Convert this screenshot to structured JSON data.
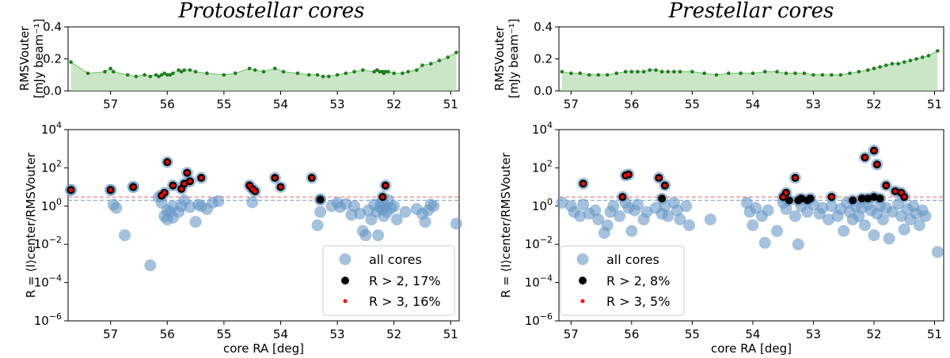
{
  "chart_data": [
    {
      "id": "proto",
      "type": "scatter",
      "title": "Protostellar cores",
      "x_ticks": [
        "57",
        "56",
        "55",
        "54",
        "53",
        "52",
        "51"
      ],
      "xlabel": "core RA [deg]",
      "top": {
        "type": "area",
        "ylabel_line1": "RMSVouter",
        "ylabel_line2": "[mJy beam⁻¹]",
        "y_ticks": [
          "0.0",
          "0.2",
          "0.4"
        ],
        "ylim": [
          0,
          0.4
        ],
        "xlim": [
          57.75,
          50.85
        ],
        "x": [
          57.7,
          57.4,
          57.1,
          57.0,
          56.95,
          56.7,
          56.55,
          56.4,
          56.3,
          56.2,
          56.15,
          56.1,
          56.05,
          56.0,
          55.95,
          55.9,
          55.8,
          55.75,
          55.7,
          55.6,
          55.5,
          55.3,
          55.0,
          54.8,
          54.55,
          54.45,
          54.3,
          54.1,
          53.95,
          53.7,
          53.5,
          53.35,
          53.25,
          53.15,
          53.0,
          52.85,
          52.7,
          52.55,
          52.35,
          52.3,
          52.25,
          52.2,
          52.18,
          52.15,
          52.1,
          52.0,
          51.85,
          51.75,
          51.6,
          51.5,
          51.35,
          51.2,
          51.05,
          50.9
        ],
        "y": [
          0.18,
          0.11,
          0.12,
          0.14,
          0.12,
          0.1,
          0.09,
          0.1,
          0.09,
          0.1,
          0.09,
          0.1,
          0.11,
          0.1,
          0.1,
          0.11,
          0.13,
          0.12,
          0.13,
          0.13,
          0.12,
          0.11,
          0.1,
          0.11,
          0.14,
          0.13,
          0.12,
          0.14,
          0.12,
          0.11,
          0.1,
          0.1,
          0.09,
          0.09,
          0.1,
          0.11,
          0.12,
          0.13,
          0.12,
          0.13,
          0.12,
          0.12,
          0.11,
          0.12,
          0.12,
          0.11,
          0.11,
          0.12,
          0.13,
          0.16,
          0.17,
          0.19,
          0.21,
          0.24
        ]
      },
      "bottom": {
        "ylabel": "R = ⟨I⟩center/RMSVouter",
        "y_ticks": [
          "10^4",
          "10^2",
          "10^0",
          "10^-2",
          "10^-4",
          "10^-6"
        ],
        "ylim_log10": [
          -6,
          4
        ],
        "xlim": [
          57.75,
          50.85
        ],
        "threshold_2": 2,
        "threshold_3": 3,
        "all_cores": [
          [
            57.7,
            7
          ],
          [
            57.0,
            7
          ],
          [
            56.95,
            1.2
          ],
          [
            56.9,
            0.8
          ],
          [
            56.75,
            0.03
          ],
          [
            56.6,
            10
          ],
          [
            56.3,
            0.0008
          ],
          [
            56.15,
            3
          ],
          [
            56.1,
            1.5
          ],
          [
            56.05,
            0.3
          ],
          [
            56.0,
            0.2
          ],
          [
            56.0,
            0.6
          ],
          [
            55.95,
            0.5
          ],
          [
            55.9,
            1.0
          ],
          [
            55.9,
            0.25
          ],
          [
            55.8,
            0.5
          ],
          [
            55.75,
            1.0
          ],
          [
            55.7,
            2.0
          ],
          [
            55.6,
            0.9
          ],
          [
            55.5,
            0.15
          ],
          [
            55.45,
            1.2
          ],
          [
            55.4,
            1.0
          ],
          [
            55.3,
            0.7
          ],
          [
            55.2,
            1.5
          ],
          [
            55.1,
            1.8
          ],
          [
            54.5,
            1.6
          ],
          [
            53.3,
            2.2
          ],
          [
            53.3,
            0.5
          ],
          [
            53.35,
            0.1
          ],
          [
            53.1,
            1.0
          ],
          [
            53.0,
            1.5
          ],
          [
            52.95,
            0.9
          ],
          [
            52.85,
            1.3
          ],
          [
            52.75,
            0.35
          ],
          [
            52.7,
            1.0
          ],
          [
            52.6,
            0.4
          ],
          [
            52.55,
            0.05
          ],
          [
            52.5,
            0.03
          ],
          [
            52.45,
            0.6
          ],
          [
            52.4,
            0.2
          ],
          [
            52.35,
            1.2
          ],
          [
            52.3,
            0.5
          ],
          [
            52.28,
            0.03
          ],
          [
            52.25,
            0.9
          ],
          [
            52.22,
            1.5
          ],
          [
            52.2,
            0.7
          ],
          [
            52.18,
            0.3
          ],
          [
            52.15,
            1.0
          ],
          [
            52.12,
            0.5
          ],
          [
            52.1,
            2.0
          ],
          [
            52.05,
            0.8
          ],
          [
            52.0,
            1.0
          ],
          [
            51.95,
            0.2
          ],
          [
            51.8,
            0.5
          ],
          [
            51.6,
            0.7
          ],
          [
            51.5,
            0.4
          ],
          [
            51.45,
            0.15
          ],
          [
            51.4,
            0.6
          ],
          [
            51.35,
            1.2
          ],
          [
            51.3,
            1.0
          ],
          [
            50.9,
            0.12
          ]
        ],
        "above_2": [
          [
            57.7,
            7
          ],
          [
            57.0,
            7
          ],
          [
            56.6,
            10
          ],
          [
            56.1,
            3.5
          ],
          [
            56.05,
            5
          ],
          [
            56.0,
            200
          ],
          [
            55.9,
            12
          ],
          [
            55.75,
            8
          ],
          [
            55.7,
            15
          ],
          [
            55.65,
            55
          ],
          [
            55.6,
            20
          ],
          [
            55.4,
            30
          ],
          [
            54.55,
            12
          ],
          [
            54.5,
            8
          ],
          [
            54.45,
            6
          ],
          [
            54.1,
            30
          ],
          [
            54.0,
            10
          ],
          [
            53.45,
            30
          ],
          [
            53.3,
            2.2
          ],
          [
            52.2,
            3
          ],
          [
            52.15,
            12
          ]
        ],
        "above_3": [
          [
            57.7,
            7
          ],
          [
            57.0,
            7
          ],
          [
            56.6,
            10
          ],
          [
            56.1,
            3.5
          ],
          [
            56.05,
            5
          ],
          [
            56.0,
            200
          ],
          [
            55.9,
            12
          ],
          [
            55.75,
            8
          ],
          [
            55.7,
            15
          ],
          [
            55.65,
            55
          ],
          [
            55.6,
            20
          ],
          [
            55.4,
            30
          ],
          [
            54.55,
            12
          ],
          [
            54.5,
            8
          ],
          [
            54.45,
            6
          ],
          [
            54.1,
            30
          ],
          [
            54.0,
            10
          ],
          [
            53.45,
            30
          ],
          [
            52.2,
            3
          ],
          [
            52.15,
            12
          ]
        ],
        "legend": [
          "all cores",
          "R > 2, 17%",
          "R > 3, 16%"
        ]
      }
    },
    {
      "id": "pre",
      "type": "scatter",
      "title": "Prestellar cores",
      "x_ticks": [
        "57",
        "56",
        "55",
        "54",
        "53",
        "52",
        "51"
      ],
      "xlabel": "core RA [deg]",
      "top": {
        "type": "area",
        "ylabel_line1": "RMSVouter",
        "ylabel_line2": "[mJy beam⁻¹]",
        "y_ticks": [
          "0.0",
          "0.2",
          "0.4"
        ],
        "ylim": [
          0,
          0.4
        ],
        "xlim": [
          57.2,
          50.85
        ],
        "x": [
          57.15,
          57.0,
          56.85,
          56.7,
          56.55,
          56.4,
          56.25,
          56.1,
          56.0,
          55.9,
          55.8,
          55.7,
          55.6,
          55.5,
          55.4,
          55.3,
          55.2,
          55.0,
          54.8,
          54.6,
          54.4,
          54.2,
          54.0,
          53.8,
          53.6,
          53.45,
          53.3,
          53.15,
          53.0,
          52.85,
          52.7,
          52.55,
          52.4,
          52.25,
          52.1,
          52.0,
          51.9,
          51.8,
          51.7,
          51.6,
          51.5,
          51.4,
          51.3,
          51.2,
          51.1,
          50.95
        ],
        "y": [
          0.12,
          0.11,
          0.11,
          0.1,
          0.1,
          0.1,
          0.11,
          0.12,
          0.12,
          0.12,
          0.12,
          0.13,
          0.13,
          0.12,
          0.12,
          0.12,
          0.12,
          0.12,
          0.11,
          0.1,
          0.11,
          0.11,
          0.11,
          0.12,
          0.12,
          0.11,
          0.11,
          0.11,
          0.1,
          0.1,
          0.1,
          0.1,
          0.11,
          0.12,
          0.13,
          0.14,
          0.15,
          0.16,
          0.17,
          0.17,
          0.18,
          0.19,
          0.2,
          0.21,
          0.22,
          0.25
        ]
      },
      "bottom": {
        "ylabel": "R = ⟨I⟩center/RMSVouter",
        "y_ticks": [
          "10^4",
          "10^2",
          "10^0",
          "10^-2",
          "10^-4",
          "10^-6"
        ],
        "ylim_log10": [
          -6,
          4
        ],
        "xlim": [
          57.2,
          50.85
        ],
        "threshold_2": 2,
        "threshold_3": 3,
        "all_cores": [
          [
            57.15,
            1.5
          ],
          [
            57.0,
            1.0
          ],
          [
            56.95,
            0.5
          ],
          [
            56.85,
            0.3
          ],
          [
            56.8,
            1.2
          ],
          [
            56.7,
            0.4
          ],
          [
            56.6,
            0.6
          ],
          [
            56.55,
            0.2
          ],
          [
            56.45,
            0.04
          ],
          [
            56.4,
            0.1
          ],
          [
            56.35,
            0.5
          ],
          [
            56.3,
            1.0
          ],
          [
            56.2,
            0.3
          ],
          [
            56.1,
            1.5
          ],
          [
            56.05,
            0.8
          ],
          [
            56.0,
            0.05
          ],
          [
            55.95,
            0.6
          ],
          [
            55.9,
            1.2
          ],
          [
            55.8,
            0.2
          ],
          [
            55.75,
            0.5
          ],
          [
            55.6,
            0.8
          ],
          [
            55.5,
            0.4
          ],
          [
            55.45,
            1.0
          ],
          [
            55.4,
            0.3
          ],
          [
            55.3,
            1.5
          ],
          [
            55.25,
            0.6
          ],
          [
            55.2,
            0.2
          ],
          [
            55.1,
            1.0
          ],
          [
            55.05,
            0.1
          ],
          [
            54.7,
            0.2
          ],
          [
            54.1,
            1.5
          ],
          [
            54.05,
            0.5
          ],
          [
            54.0,
            0.1
          ],
          [
            53.95,
            0.8
          ],
          [
            53.85,
            0.3
          ],
          [
            53.8,
            0.012
          ],
          [
            53.75,
            0.6
          ],
          [
            53.6,
            0.05
          ],
          [
            53.5,
            1.5
          ],
          [
            53.45,
            0.7
          ],
          [
            53.3,
            0.3
          ],
          [
            53.25,
            0.01
          ],
          [
            53.2,
            1.0
          ],
          [
            53.1,
            0.5
          ],
          [
            53.0,
            1.2
          ],
          [
            52.9,
            0.4
          ],
          [
            52.85,
            0.8
          ],
          [
            52.75,
            0.2
          ],
          [
            52.7,
            1.0
          ],
          [
            52.6,
            0.3
          ],
          [
            52.55,
            0.7
          ],
          [
            52.5,
            0.05
          ],
          [
            52.45,
            1.5
          ],
          [
            52.4,
            0.5
          ],
          [
            52.35,
            0.2
          ],
          [
            52.3,
            1.0
          ],
          [
            52.25,
            0.3
          ],
          [
            52.2,
            0.8
          ],
          [
            52.15,
            0.1
          ],
          [
            52.1,
            1.2
          ],
          [
            52.05,
            0.6
          ],
          [
            52.0,
            0.03
          ],
          [
            51.95,
            0.4
          ],
          [
            51.9,
            1.0
          ],
          [
            51.85,
            0.2
          ],
          [
            51.8,
            0.8
          ],
          [
            51.75,
            0.02
          ],
          [
            51.7,
            0.5
          ],
          [
            51.6,
            1.3
          ],
          [
            51.55,
            0.3
          ],
          [
            51.5,
            0.06
          ],
          [
            51.45,
            0.7
          ],
          [
            51.4,
            0.2
          ],
          [
            51.35,
            1.0
          ],
          [
            51.3,
            0.4
          ],
          [
            51.25,
            0.1
          ],
          [
            51.2,
            0.6
          ],
          [
            51.15,
            0.3
          ],
          [
            50.95,
            0.004
          ]
        ],
        "above_2": [
          [
            56.8,
            15
          ],
          [
            56.15,
            3
          ],
          [
            56.1,
            40
          ],
          [
            56.05,
            45
          ],
          [
            55.55,
            30
          ],
          [
            55.5,
            2.5
          ],
          [
            55.45,
            12
          ],
          [
            53.5,
            3
          ],
          [
            53.45,
            5
          ],
          [
            53.4,
            2
          ],
          [
            53.3,
            30
          ],
          [
            53.25,
            2
          ],
          [
            53.2,
            2.5
          ],
          [
            53.1,
            2
          ],
          [
            53.05,
            2.5
          ],
          [
            52.7,
            3
          ],
          [
            52.35,
            2
          ],
          [
            52.2,
            2.5
          ],
          [
            52.15,
            350
          ],
          [
            52.1,
            2.5
          ],
          [
            52.0,
            800
          ],
          [
            52.0,
            3
          ],
          [
            51.95,
            150
          ],
          [
            51.9,
            2.5
          ],
          [
            51.8,
            12
          ],
          [
            51.65,
            6
          ],
          [
            51.55,
            5
          ],
          [
            51.5,
            3
          ]
        ],
        "above_3": [
          [
            56.8,
            15
          ],
          [
            56.15,
            3
          ],
          [
            56.1,
            40
          ],
          [
            56.05,
            45
          ],
          [
            55.55,
            30
          ],
          [
            55.45,
            12
          ],
          [
            53.5,
            3
          ],
          [
            53.45,
            5
          ],
          [
            53.3,
            30
          ],
          [
            52.7,
            3
          ],
          [
            52.15,
            350
          ],
          [
            52.0,
            800
          ],
          [
            51.95,
            150
          ],
          [
            51.8,
            12
          ],
          [
            51.65,
            6
          ],
          [
            51.55,
            5
          ],
          [
            51.5,
            3
          ]
        ],
        "legend": [
          "all cores",
          "R > 2, 8%",
          "R > 3, 5%"
        ]
      }
    }
  ]
}
